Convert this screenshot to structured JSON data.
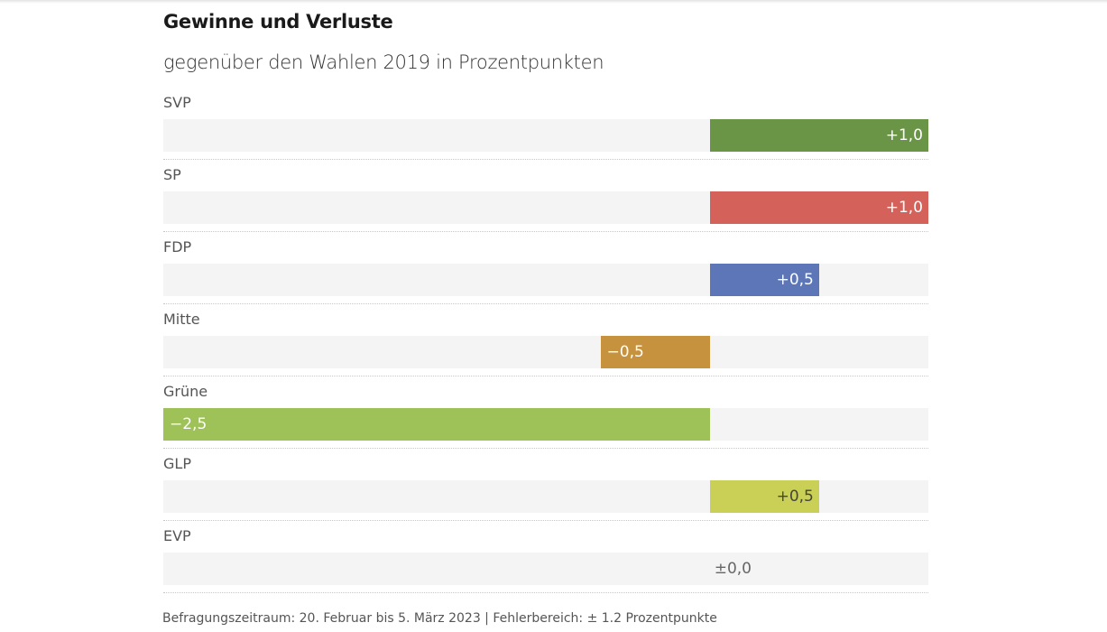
{
  "header": {
    "title": "Gewinne und Verluste",
    "subtitle": "gegenüber den Wahlen 2019 in Prozentpunkten"
  },
  "footer": {
    "note": "Befragungszeitraum: 20. Februar bis 5. März 2023 | Fehlerbereich: ± 1.2 Prozentpunkte"
  },
  "chart_data": {
    "type": "bar",
    "orientation": "horizontal",
    "title": "Gewinne und Verluste",
    "subtitle": "gegenüber den Wahlen 2019 in Prozentpunkten",
    "xlabel": "",
    "ylabel": "",
    "xlim": [
      -2.5,
      1.0
    ],
    "grid": false,
    "legend": "none",
    "categories": [
      "SVP",
      "SP",
      "FDP",
      "Mitte",
      "Grüne",
      "GLP",
      "EVP"
    ],
    "values": [
      1.0,
      1.0,
      0.5,
      -0.5,
      -2.5,
      0.5,
      0.0
    ],
    "labels": [
      "+1,0",
      "+1,0",
      "+0,5",
      "−0,5",
      "−2,5",
      "+0,5",
      "±0,0"
    ],
    "colors": [
      "#6a9446",
      "#d4625b",
      "#5c76b8",
      "#c7923e",
      "#9ec158",
      "#cacf55",
      "#f4f4f4"
    ],
    "label_colors": [
      "#ffffff",
      "#ffffff",
      "#ffffff",
      "#ffffff",
      "#ffffff",
      "#444444",
      "#666666"
    ]
  }
}
